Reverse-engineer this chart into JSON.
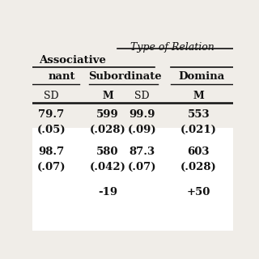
{
  "title": "Type of Relation",
  "header_assoc": "Associative",
  "header_nant": "nant",
  "header_sub": "Subordinate",
  "header_domina": "Domina",
  "col_sd1": "SD",
  "col_m1": "M",
  "col_sd2": "SD",
  "col_m2": "M",
  "r1": [
    "79.7",
    "599",
    "99.9",
    "553"
  ],
  "r1p": [
    "(.05)",
    "(.028)",
    "(.09)",
    "(.021)"
  ],
  "r2": [
    "98.7",
    "580",
    "87.3",
    "603"
  ],
  "r2p": [
    "(.07)",
    "(.042)",
    "(.07)",
    "(.028)"
  ],
  "r3": [
    "-19",
    "+50"
  ],
  "bg_header": "#f0ede8",
  "bg_data": "#ffffff",
  "text_color": "#111111",
  "line_color": "#111111"
}
